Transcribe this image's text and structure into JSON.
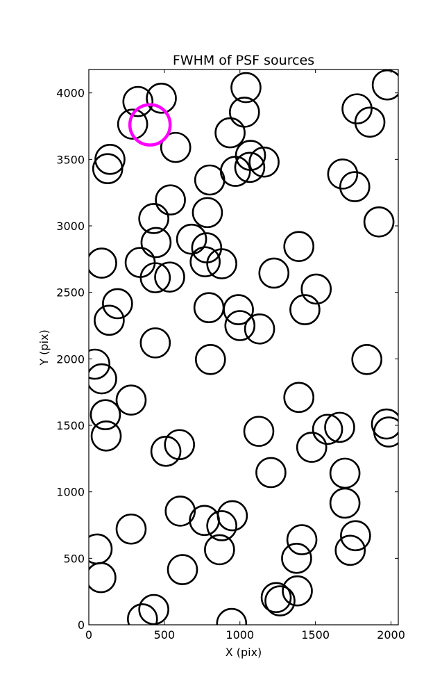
{
  "chart_data": {
    "type": "scatter",
    "title": "FWHM of PSF sources",
    "xlabel": "X (pix)",
    "ylabel": "Y (pix)",
    "xlim": [
      0,
      2048
    ],
    "ylim": [
      0,
      4176
    ],
    "xticks": [
      0,
      500,
      1000,
      1500,
      2000
    ],
    "yticks": [
      0,
      500,
      1000,
      1500,
      2000,
      2500,
      3000,
      3500,
      4000
    ],
    "grid": false,
    "marker": "open-circle",
    "marker_color": "#000000",
    "highlight_color": "#ff00ff",
    "sources": [
      {
        "x": 325,
        "y": 3935
      },
      {
        "x": 480,
        "y": 3960
      },
      {
        "x": 290,
        "y": 3765
      },
      {
        "x": 140,
        "y": 3500
      },
      {
        "x": 125,
        "y": 3430
      },
      {
        "x": 575,
        "y": 3590
      },
      {
        "x": 1040,
        "y": 4040
      },
      {
        "x": 1030,
        "y": 3855
      },
      {
        "x": 935,
        "y": 3700
      },
      {
        "x": 1975,
        "y": 4060
      },
      {
        "x": 1775,
        "y": 3880
      },
      {
        "x": 1860,
        "y": 3780
      },
      {
        "x": 1070,
        "y": 3530
      },
      {
        "x": 1160,
        "y": 3480
      },
      {
        "x": 1065,
        "y": 3440
      },
      {
        "x": 970,
        "y": 3410
      },
      {
        "x": 800,
        "y": 3345
      },
      {
        "x": 1680,
        "y": 3390
      },
      {
        "x": 1760,
        "y": 3295
      },
      {
        "x": 540,
        "y": 3195
      },
      {
        "x": 785,
        "y": 3100
      },
      {
        "x": 430,
        "y": 3055
      },
      {
        "x": 1920,
        "y": 3030
      },
      {
        "x": 680,
        "y": 2900
      },
      {
        "x": 445,
        "y": 2875
      },
      {
        "x": 780,
        "y": 2835
      },
      {
        "x": 1390,
        "y": 2845
      },
      {
        "x": 85,
        "y": 2720
      },
      {
        "x": 340,
        "y": 2725
      },
      {
        "x": 770,
        "y": 2730
      },
      {
        "x": 880,
        "y": 2715
      },
      {
        "x": 440,
        "y": 2610
      },
      {
        "x": 535,
        "y": 2615
      },
      {
        "x": 1225,
        "y": 2645
      },
      {
        "x": 1505,
        "y": 2525
      },
      {
        "x": 190,
        "y": 2415
      },
      {
        "x": 795,
        "y": 2385
      },
      {
        "x": 990,
        "y": 2370
      },
      {
        "x": 1430,
        "y": 2370
      },
      {
        "x": 135,
        "y": 2290
      },
      {
        "x": 1000,
        "y": 2250
      },
      {
        "x": 1130,
        "y": 2225
      },
      {
        "x": 440,
        "y": 2120
      },
      {
        "x": 805,
        "y": 1995
      },
      {
        "x": 1840,
        "y": 1995
      },
      {
        "x": 40,
        "y": 1960
      },
      {
        "x": 85,
        "y": 1850
      },
      {
        "x": 280,
        "y": 1690
      },
      {
        "x": 1390,
        "y": 1710
      },
      {
        "x": 110,
        "y": 1580
      },
      {
        "x": 1580,
        "y": 1470
      },
      {
        "x": 1660,
        "y": 1485
      },
      {
        "x": 1970,
        "y": 1510
      },
      {
        "x": 1985,
        "y": 1450
      },
      {
        "x": 115,
        "y": 1420
      },
      {
        "x": 1125,
        "y": 1455
      },
      {
        "x": 600,
        "y": 1355
      },
      {
        "x": 510,
        "y": 1305
      },
      {
        "x": 1475,
        "y": 1335
      },
      {
        "x": 1205,
        "y": 1145
      },
      {
        "x": 1695,
        "y": 1140
      },
      {
        "x": 1695,
        "y": 915
      },
      {
        "x": 605,
        "y": 855
      },
      {
        "x": 765,
        "y": 785
      },
      {
        "x": 880,
        "y": 745
      },
      {
        "x": 950,
        "y": 820
      },
      {
        "x": 280,
        "y": 720
      },
      {
        "x": 1765,
        "y": 670
      },
      {
        "x": 55,
        "y": 570
      },
      {
        "x": 865,
        "y": 565
      },
      {
        "x": 1410,
        "y": 640
      },
      {
        "x": 1730,
        "y": 560
      },
      {
        "x": 1375,
        "y": 500
      },
      {
        "x": 620,
        "y": 415
      },
      {
        "x": 80,
        "y": 355
      },
      {
        "x": 1380,
        "y": 255
      },
      {
        "x": 1240,
        "y": 205
      },
      {
        "x": 1265,
        "y": 180
      },
      {
        "x": 430,
        "y": 115
      },
      {
        "x": 355,
        "y": 45
      },
      {
        "x": 945,
        "y": 10
      }
    ],
    "highlight": [
      {
        "x": 405,
        "y": 3760
      }
    ]
  }
}
